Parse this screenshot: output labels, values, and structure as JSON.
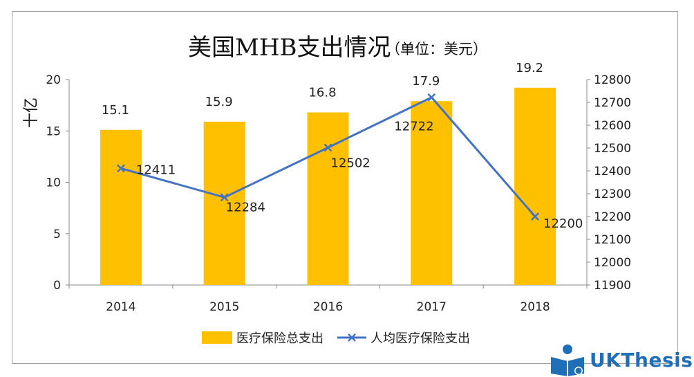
{
  "chart_data": {
    "type": "bar",
    "title": "美国MHB支出情况",
    "subtitle": "（单位：美元）",
    "ylabel_left": "十亿",
    "categories": [
      "2014",
      "2015",
      "2016",
      "2017",
      "2018"
    ],
    "ylim_left": [
      0,
      20
    ],
    "yticks_left": [
      "0",
      "5",
      "10",
      "15",
      "20"
    ],
    "ylim_right": [
      11900,
      12800
    ],
    "yticks_right": [
      "11900",
      "12000",
      "12100",
      "12200",
      "12300",
      "12400",
      "12500",
      "12600",
      "12700",
      "12800"
    ],
    "series": [
      {
        "name": "医疗保险总支出",
        "type": "bar",
        "axis": "left",
        "color": "#ffc000",
        "values": [
          15.1,
          15.9,
          16.8,
          17.9,
          19.2
        ],
        "labels": [
          "15.1",
          "15.9",
          "16.8",
          "17.9",
          "19.2"
        ]
      },
      {
        "name": "人均医疗保险支出",
        "type": "line",
        "axis": "right",
        "color": "#4472c4",
        "values": [
          12411,
          12284,
          12502,
          12722,
          12200
        ],
        "labels": [
          "12411",
          "12284",
          "12502",
          "12722",
          "12200"
        ]
      }
    ],
    "legend_position": "bottom",
    "grid": false
  },
  "watermark": {
    "text": "UKThesis",
    "icon": "reader-book-icon",
    "color": "#1e6fb8"
  }
}
